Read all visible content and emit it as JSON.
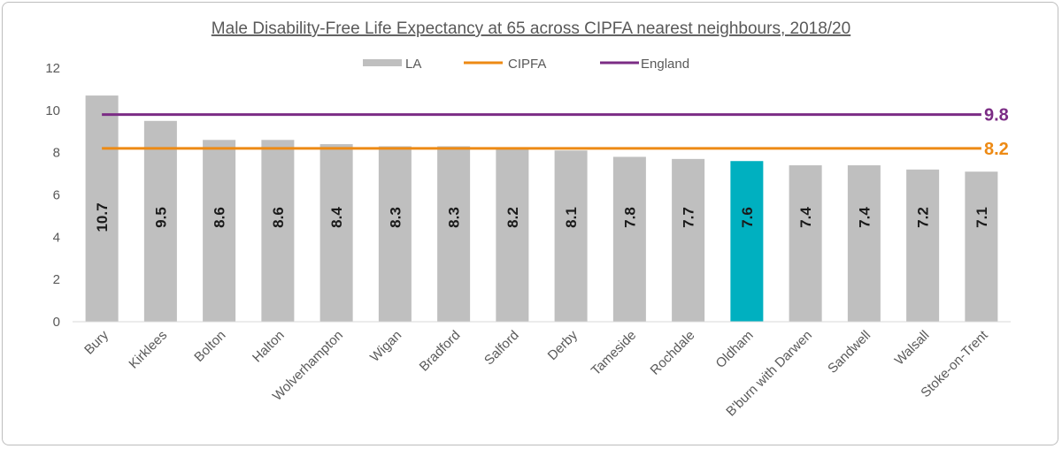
{
  "chart_data": {
    "type": "bar",
    "title": "Male Disability-Free Life Expectancy at 65 across CIPFA nearest neighbours, 2018/20",
    "categories": [
      "Bury",
      "Kirklees",
      "Bolton",
      "Halton",
      "Wolverhampton",
      "Wigan",
      "Bradford",
      "Salford",
      "Derby",
      "Tameside",
      "Rochdale",
      "Oldham",
      "B'burn with Darwen",
      "Sandwell",
      "Walsall",
      "Stoke-on-Trent"
    ],
    "value_labels": [
      "10.7",
      "9.5",
      "8.6",
      "8.6",
      "8.4",
      "8.3",
      "8.3",
      "8.2",
      "8.1",
      "7.8",
      "7.7",
      "7.6",
      "7.4",
      "7.4",
      "7.2",
      "7.1"
    ],
    "series": [
      {
        "name": "LA",
        "values": [
          10.7,
          9.5,
          8.6,
          8.6,
          8.4,
          8.3,
          8.3,
          8.2,
          8.1,
          7.8,
          7.7,
          7.6,
          7.4,
          7.4,
          7.2,
          7.1
        ],
        "color": "#bfbfbf",
        "highlight_category": "Oldham",
        "highlight_color": "#00b0c0"
      }
    ],
    "reference_lines": [
      {
        "name": "CIPFA",
        "value": 8.2,
        "label": "8.2",
        "color": "#ed8a14"
      },
      {
        "name": "England",
        "value": 9.8,
        "label": "9.8",
        "color": "#7b2c85"
      }
    ],
    "ylim": [
      0,
      12
    ],
    "yticks": [
      "0",
      "2",
      "4",
      "6",
      "8",
      "10",
      "12"
    ],
    "grid": false,
    "legend": "top-center"
  }
}
